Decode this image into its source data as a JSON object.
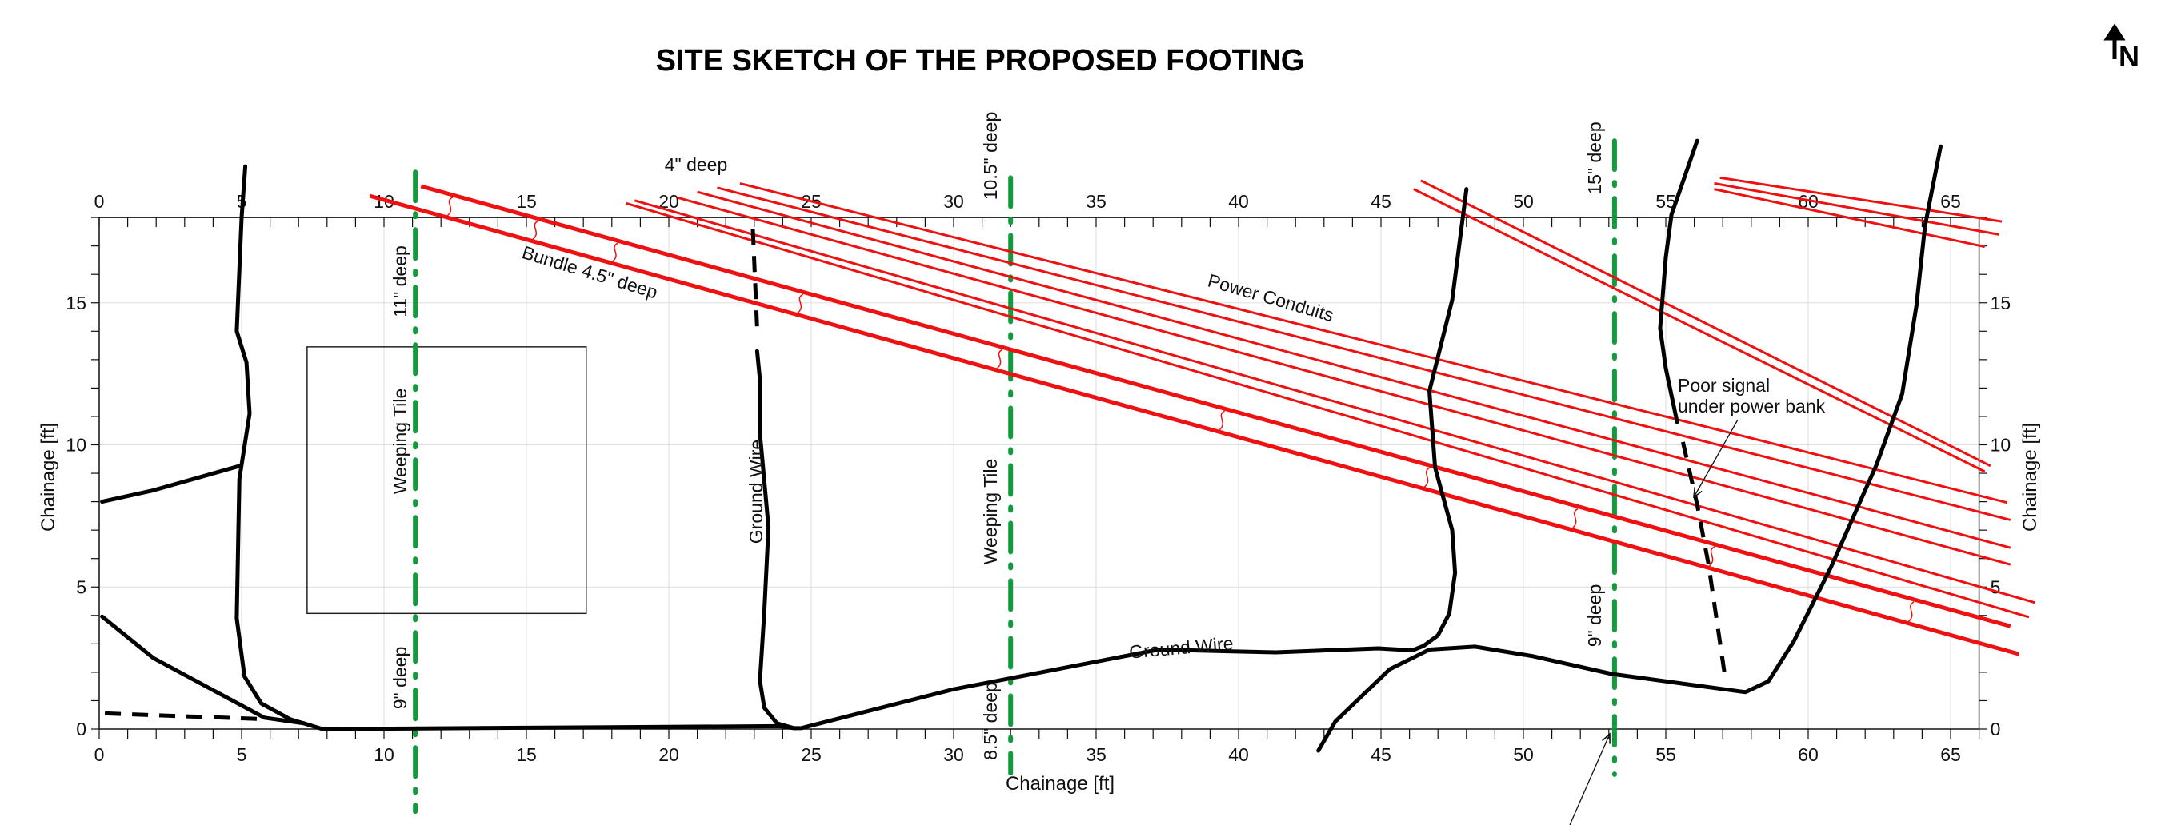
{
  "title": "SITE SKETCH OF THE PROPOSED FOOTING",
  "north_label": "N",
  "colors": {
    "conduit": "#ee1111",
    "weeping_tile": "#139a3c",
    "ground": "#000000",
    "grid": "#dddddd"
  },
  "axes": {
    "x_title": "Chainage [ft]",
    "y_title_left": "Chainage [ft]",
    "y_title_right": "Chainage [ft]",
    "x_range": [
      0,
      66
    ],
    "y_range": [
      0,
      18
    ],
    "x_ticks": [
      "0",
      "5",
      "10",
      "15",
      "20",
      "25",
      "30",
      "35",
      "40",
      "45",
      "50",
      "55",
      "60",
      "65"
    ],
    "y_ticks": [
      "0",
      "5",
      "10",
      "15"
    ],
    "grid": true
  },
  "labels": {
    "deep_4": "4\" deep",
    "deep_10_5": "10.5\" deep",
    "deep_15": "15\" deep",
    "deep_11": "11\" deep",
    "bundle": "Bundle 4.5\" deep",
    "power_conduits": "Power Conduits",
    "weeping_tile_left": "Weeping Tile",
    "weeping_tile_mid": "Weeping Tile",
    "ground_wire_vertical": "Ground Wire",
    "ground_wire_lower": "Ground Wire",
    "deep_9_left": "9\" deep",
    "deep_8_5": "8.5\" deep",
    "deep_9_right": "9\" deep",
    "poor_signal_1": "Poor signal",
    "poor_signal_2": "under power bank"
  },
  "features": {
    "footing_rect": {
      "x": [
        7.3,
        17.1
      ],
      "y": [
        4.07,
        13.45
      ]
    },
    "weeping_tiles": [
      {
        "x": 11.1,
        "y": [
          -2.9,
          19.6
        ]
      },
      {
        "x": 32.0,
        "y": [
          -1.55,
          19.4
        ]
      },
      {
        "x": 53.2,
        "y": [
          -1.6,
          20.7
        ]
      }
    ],
    "ground_solid": [
      [
        [
          5.13,
          19.8
        ],
        [
          5.0,
          18.0
        ],
        [
          4.83,
          14.0
        ],
        [
          5.17,
          12.9
        ],
        [
          5.28,
          11.1
        ],
        [
          4.92,
          8.8
        ],
        [
          4.83,
          3.9
        ],
        [
          5.1,
          1.85
        ],
        [
          5.69,
          0.9
        ],
        [
          6.7,
          0.35
        ],
        [
          7.84,
          0
        ],
        [
          23.9,
          0.1
        ],
        [
          24.4,
          0.03
        ],
        [
          24.64,
          0.03
        ],
        [
          30.0,
          1.4
        ],
        [
          37.2,
          2.8
        ],
        [
          41.3,
          2.7
        ],
        [
          44.9,
          2.84
        ],
        [
          46.1,
          2.77
        ],
        [
          46.5,
          2.93
        ],
        [
          47.0,
          3.3
        ],
        [
          47.4,
          4.07
        ],
        [
          47.6,
          5.5
        ],
        [
          47.5,
          7.0
        ],
        [
          46.9,
          9.2
        ],
        [
          46.7,
          11.9
        ],
        [
          47.0,
          13.1
        ],
        [
          47.5,
          15.1
        ],
        [
          48.0,
          19.0
        ]
      ],
      [
        [
          0.1,
          8.0
        ],
        [
          1.9,
          8.4
        ],
        [
          4.9,
          9.25
        ]
      ],
      [
        [
          0.1,
          3.96
        ],
        [
          1.9,
          2.5
        ],
        [
          5.8,
          0.4
        ],
        [
          7.2,
          0.2
        ]
      ],
      [
        [
          23.1,
          13.3
        ],
        [
          23.2,
          12.3
        ],
        [
          23.2,
          10.4
        ],
        [
          23.3,
          9.3
        ],
        [
          23.5,
          7.1
        ],
        [
          23.35,
          4.1
        ],
        [
          23.2,
          1.7
        ],
        [
          23.35,
          0.75
        ],
        [
          23.8,
          0.2
        ],
        [
          24.4,
          0.03
        ]
      ],
      [
        [
          42.8,
          -0.76
        ],
        [
          43.4,
          0.27
        ],
        [
          45.3,
          2.1
        ],
        [
          46.7,
          2.8
        ],
        [
          48.3,
          2.9
        ],
        [
          50.3,
          2.57
        ],
        [
          53.1,
          1.94
        ],
        [
          56.1,
          1.53
        ],
        [
          57.8,
          1.3
        ],
        [
          58.6,
          1.68
        ],
        [
          59.5,
          3.1
        ],
        [
          60.8,
          5.7
        ],
        [
          62.4,
          9.3
        ],
        [
          63.3,
          11.8
        ],
        [
          63.8,
          14.9
        ],
        [
          64.1,
          17.7
        ],
        [
          64.65,
          20.5
        ]
      ],
      [
        [
          56.1,
          20.7
        ],
        [
          55.2,
          18.1
        ],
        [
          55.0,
          16.6
        ],
        [
          54.8,
          14.1
        ],
        [
          55.0,
          12.7
        ],
        [
          55.4,
          10.8
        ]
      ]
    ],
    "ground_dashed": [
      [
        [
          0.2,
          0.55
        ],
        [
          5.8,
          0.35
        ]
      ],
      [
        [
          22.95,
          17.6
        ],
        [
          23.1,
          14.1
        ]
      ],
      [
        [
          55.6,
          10.1
        ],
        [
          56.1,
          7.9
        ],
        [
          56.5,
          5.8
        ],
        [
          57.1,
          1.7
        ]
      ]
    ],
    "conduits_thick": [
      [
        [
          11.3,
          19.1
        ],
        [
          67.1,
          3.62
        ]
      ],
      [
        [
          9.5,
          18.76
        ],
        [
          67.4,
          2.64
        ]
      ]
    ],
    "conduits_thin": [
      [
        [
          18.5,
          18.5
        ],
        [
          67.75,
          3.94
        ]
      ],
      [
        [
          18.8,
          18.6
        ],
        [
          67.96,
          4.45
        ]
      ],
      [
        [
          20.3,
          18.7
        ],
        [
          67.1,
          5.79
        ]
      ],
      [
        [
          21.0,
          18.9
        ],
        [
          67.1,
          6.38
        ]
      ],
      [
        [
          21.7,
          19.05
        ],
        [
          67.1,
          7.36
        ]
      ],
      [
        [
          22.5,
          19.2
        ],
        [
          66.98,
          7.97
        ]
      ],
      [
        [
          46.4,
          19.3
        ],
        [
          66.4,
          9.26
        ]
      ],
      [
        [
          46.15,
          19.0
        ],
        [
          66.2,
          9.06
        ]
      ],
      [
        [
          56.9,
          19.4
        ],
        [
          66.8,
          17.86
        ]
      ],
      [
        [
          56.7,
          19.2
        ],
        [
          66.7,
          17.4
        ]
      ],
      [
        [
          56.7,
          19.0
        ],
        [
          66.2,
          16.97
        ]
      ]
    ]
  }
}
